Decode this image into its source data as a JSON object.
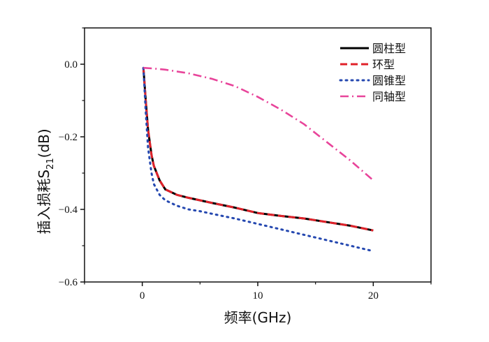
{
  "chart_data": {
    "type": "line",
    "title": "",
    "xlabel": "频率(GHz)",
    "ylabel": "插入损耗S21(dB)",
    "ylabel_main": "插入损耗S",
    "ylabel_sub": "21",
    "ylabel_unit": "(dB)",
    "xlim": [
      -5,
      25
    ],
    "ylim": [
      -0.6,
      0.1
    ],
    "x_ticks": [
      0,
      10,
      20
    ],
    "x_tick_labels": [
      "0",
      "10",
      "20"
    ],
    "y_ticks": [
      0.0,
      -0.2,
      -0.4,
      -0.6
    ],
    "y_tick_labels": [
      "0.0",
      "−0.2",
      "−0.4",
      "−0.6"
    ],
    "legend_position": "top-right",
    "series": [
      {
        "name": "圆柱型",
        "color": "#000000",
        "dash": "solid",
        "x": [
          0.1,
          0.3,
          0.5,
          0.8,
          1.0,
          1.5,
          2.0,
          3.0,
          4.0,
          5.0,
          6.0,
          8.0,
          10.0,
          12.0,
          14.0,
          16.0,
          18.0,
          20.0
        ],
        "y": [
          -0.01,
          -0.1,
          -0.18,
          -0.25,
          -0.28,
          -0.32,
          -0.345,
          -0.36,
          -0.368,
          -0.375,
          -0.382,
          -0.395,
          -0.41,
          -0.418,
          -0.425,
          -0.435,
          -0.445,
          -0.458
        ]
      },
      {
        "name": "环型",
        "color": "#e0222a",
        "dash": "dashed",
        "x": [
          0.1,
          0.3,
          0.5,
          0.8,
          1.0,
          1.5,
          2.0,
          3.0,
          4.0,
          5.0,
          6.0,
          8.0,
          10.0,
          12.0,
          14.0,
          16.0,
          18.0,
          20.0
        ],
        "y": [
          -0.01,
          -0.1,
          -0.18,
          -0.25,
          -0.28,
          -0.32,
          -0.345,
          -0.36,
          -0.368,
          -0.375,
          -0.382,
          -0.395,
          -0.41,
          -0.418,
          -0.425,
          -0.435,
          -0.445,
          -0.458
        ]
      },
      {
        "name": "圆锥型",
        "color": "#2548b0",
        "dash": "dotted",
        "x": [
          0.1,
          0.3,
          0.5,
          0.8,
          1.0,
          1.5,
          2.0,
          3.0,
          4.0,
          5.0,
          6.0,
          8.0,
          10.0,
          12.0,
          14.0,
          16.0,
          18.0,
          20.0
        ],
        "y": [
          -0.01,
          -0.13,
          -0.23,
          -0.3,
          -0.33,
          -0.36,
          -0.375,
          -0.39,
          -0.4,
          -0.405,
          -0.412,
          -0.425,
          -0.44,
          -0.455,
          -0.47,
          -0.485,
          -0.5,
          -0.515
        ]
      },
      {
        "name": "同轴型",
        "color": "#e8449a",
        "dash": "dashdot",
        "x": [
          0.1,
          1.0,
          2.0,
          4.0,
          6.0,
          8.0,
          10.0,
          12.0,
          14.0,
          16.0,
          18.0,
          20.0
        ],
        "y": [
          -0.01,
          -0.012,
          -0.015,
          -0.025,
          -0.04,
          -0.06,
          -0.09,
          -0.125,
          -0.165,
          -0.215,
          -0.265,
          -0.32
        ]
      }
    ]
  }
}
